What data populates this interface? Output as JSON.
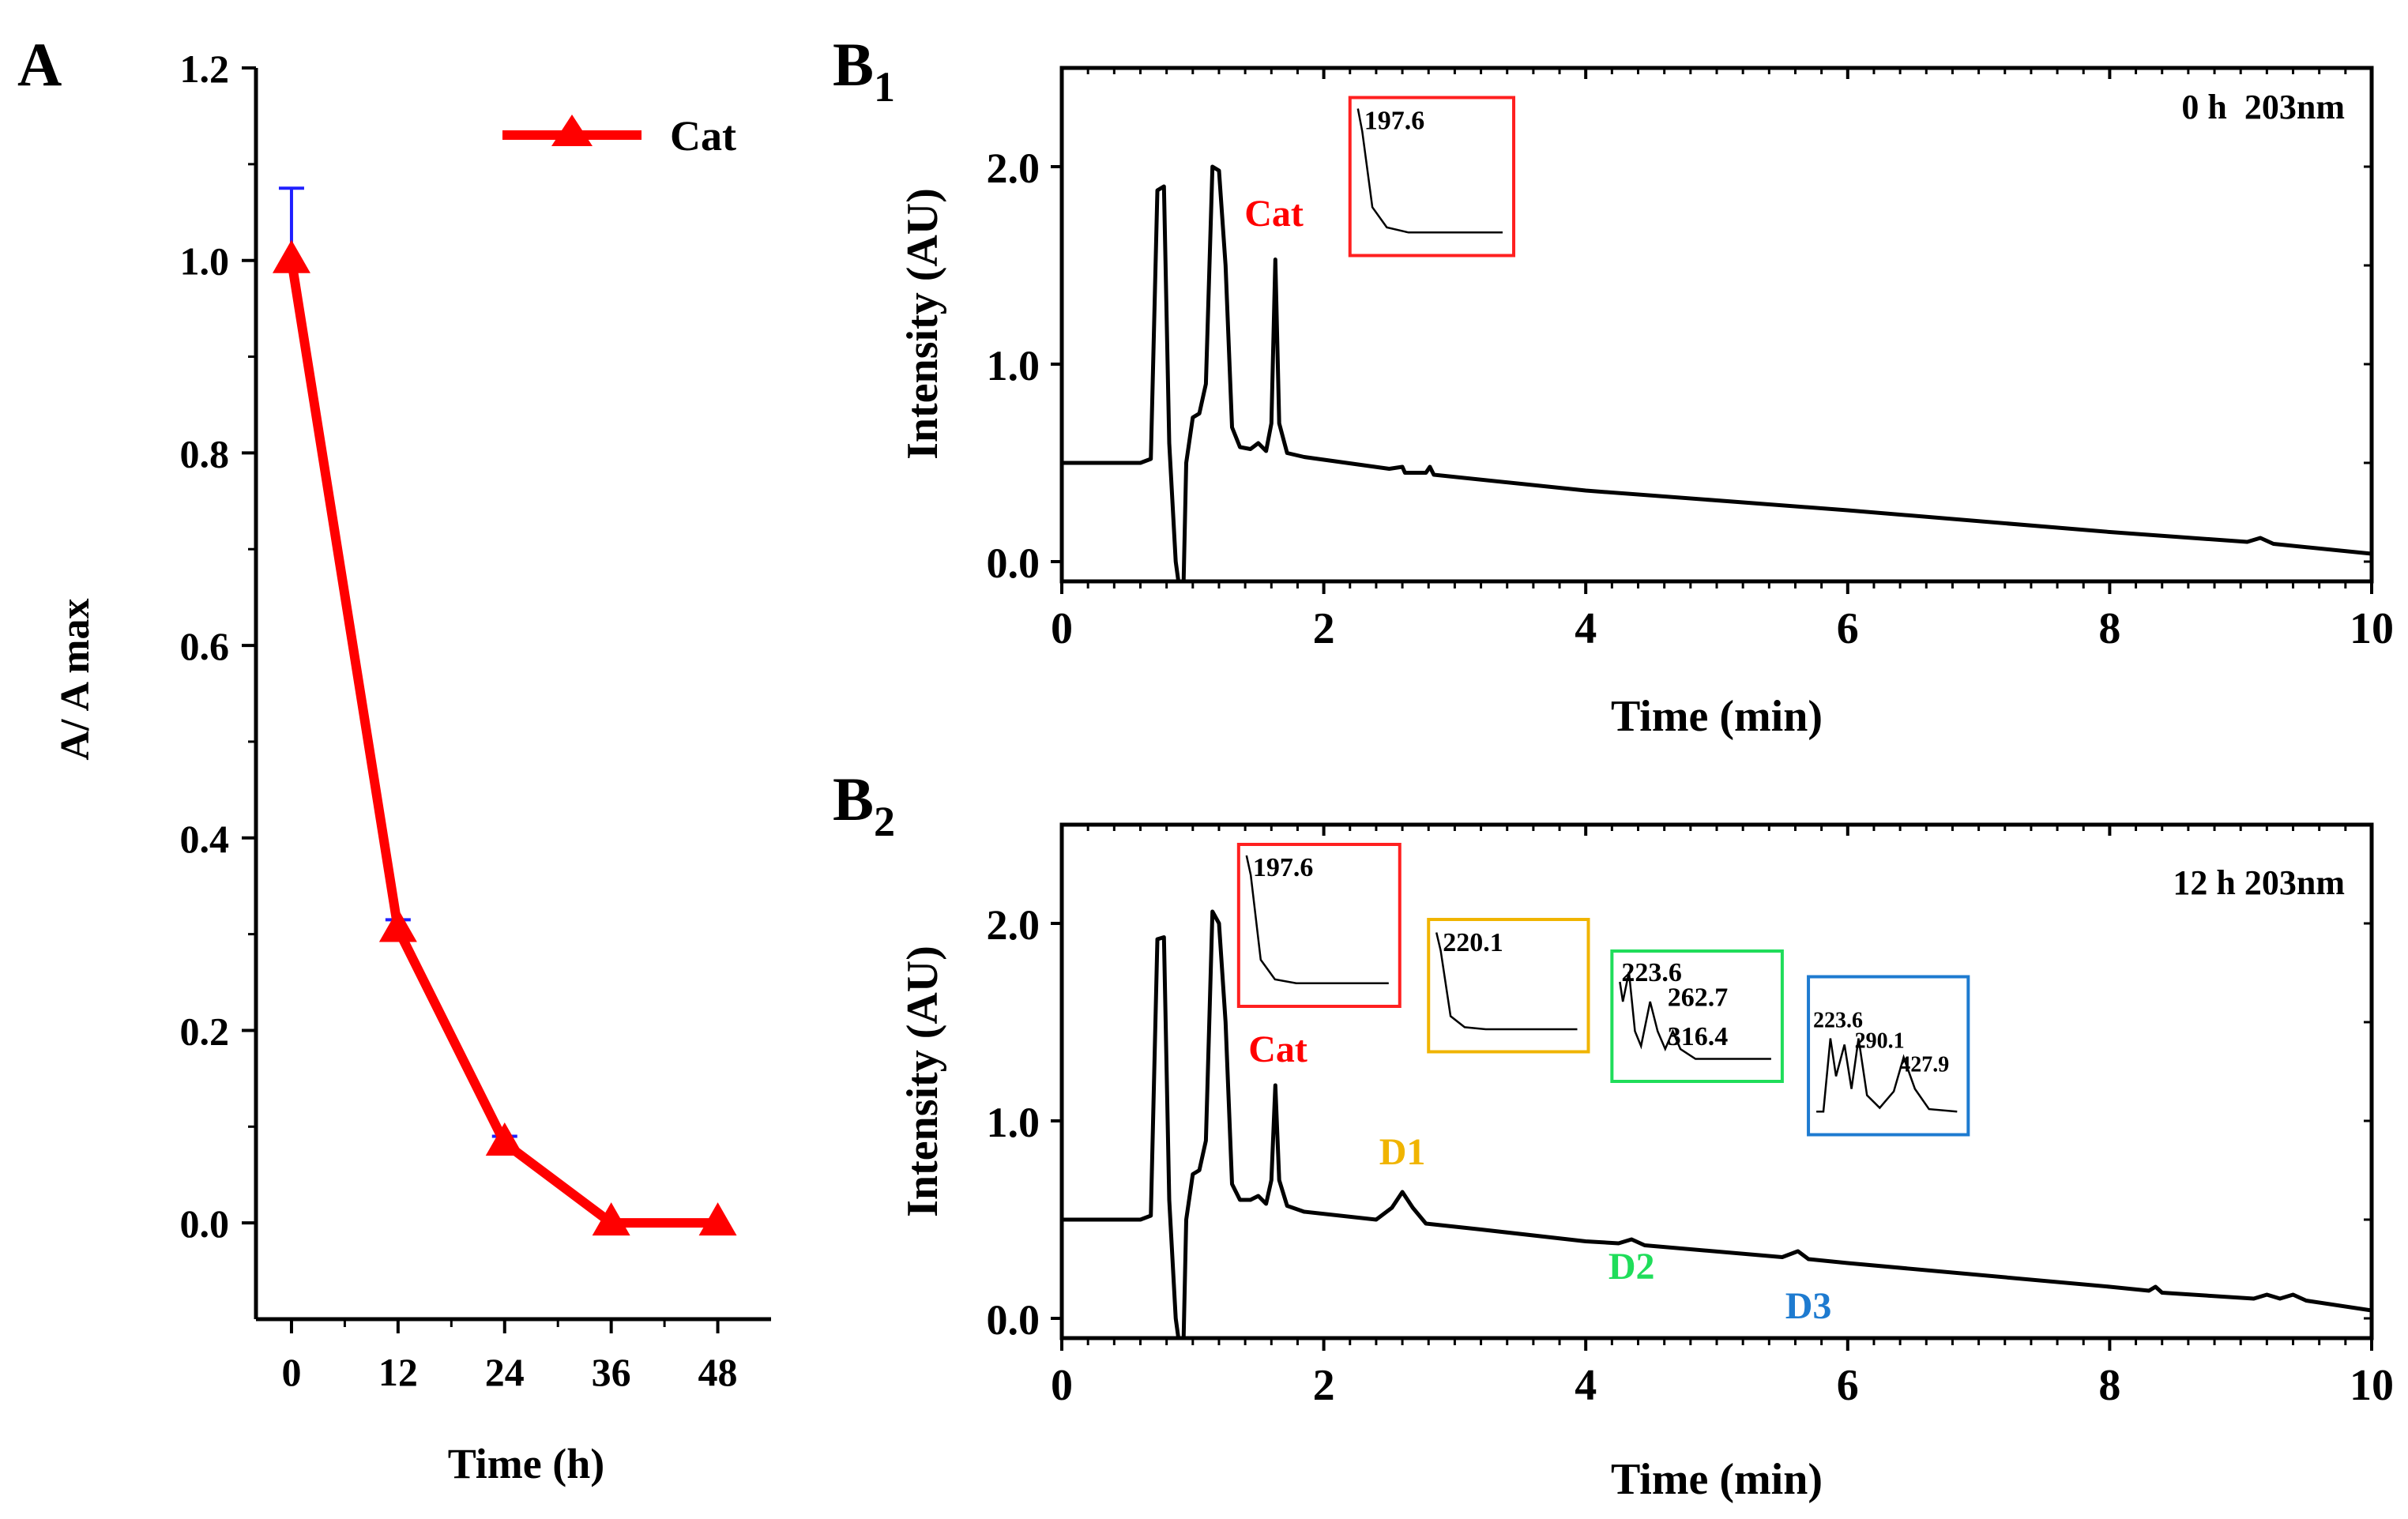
{
  "panels": {
    "a_label": "A",
    "b1_label_main": "B",
    "b1_label_sub": "1",
    "b2_label_main": "B",
    "b2_label_sub": "2"
  },
  "chart_data": [
    {
      "id": "A",
      "type": "line",
      "xlabel": "Time (h)",
      "ylabel": "A/ A max",
      "xlim": [
        -4,
        54
      ],
      "ylim": [
        -0.1,
        1.2
      ],
      "x": [
        0,
        12,
        24,
        36,
        48
      ],
      "x_tick_labels": [
        "0",
        "12",
        "24",
        "36",
        "48"
      ],
      "y_tick_labels": [
        "0.0",
        "0.2",
        "0.4",
        "0.6",
        "0.8",
        "1.0",
        "1.2"
      ],
      "series": [
        {
          "name": "Cat",
          "color": "#ff0000",
          "marker": "triangle",
          "values": [
            1.0,
            0.305,
            0.083,
            0.0,
            0.0
          ],
          "error_upper": [
            1.075,
            0.315,
            0.09,
            0.0,
            0.0
          ],
          "error_color": "#2020ff"
        }
      ],
      "legend": {
        "position": "top-right"
      },
      "grid": false
    },
    {
      "id": "B1",
      "type": "line",
      "xlabel": "Time (min)",
      "ylabel": "Intensity (AU)",
      "xlim": [
        0,
        10
      ],
      "ylim": [
        -0.1,
        2.5
      ],
      "x_tick_labels": [
        "0",
        "2",
        "4",
        "6",
        "8",
        "10"
      ],
      "y_tick_labels": [
        "0.0",
        "1.0",
        "2.0"
      ],
      "condition": "0 h  203nm",
      "series": [
        {
          "color": "#000000",
          "points": [
            [
              0,
              0.5
            ],
            [
              0.6,
              0.5
            ],
            [
              0.68,
              0.52
            ],
            [
              0.73,
              1.88
            ],
            [
              0.78,
              1.9
            ],
            [
              0.82,
              0.6
            ],
            [
              0.87,
              0.0
            ],
            [
              0.89,
              -0.1
            ],
            [
              0.93,
              -0.1
            ],
            [
              0.95,
              0.5
            ],
            [
              1.0,
              0.73
            ],
            [
              1.05,
              0.75
            ],
            [
              1.1,
              0.9
            ],
            [
              1.15,
              2.0
            ],
            [
              1.2,
              1.98
            ],
            [
              1.25,
              1.5
            ],
            [
              1.3,
              0.68
            ],
            [
              1.36,
              0.58
            ],
            [
              1.44,
              0.57
            ],
            [
              1.5,
              0.6
            ],
            [
              1.56,
              0.56
            ],
            [
              1.6,
              0.7
            ],
            [
              1.63,
              1.53
            ],
            [
              1.66,
              0.7
            ],
            [
              1.72,
              0.55
            ],
            [
              1.85,
              0.53
            ],
            [
              2.5,
              0.47
            ],
            [
              2.6,
              0.48
            ],
            [
              2.62,
              0.45
            ],
            [
              2.78,
              0.45
            ],
            [
              2.81,
              0.48
            ],
            [
              2.84,
              0.44
            ],
            [
              4.0,
              0.36
            ],
            [
              6.0,
              0.26
            ],
            [
              8.0,
              0.15
            ],
            [
              9.05,
              0.1
            ],
            [
              9.15,
              0.12
            ],
            [
              9.25,
              0.09
            ],
            [
              10.0,
              0.04
            ]
          ]
        }
      ],
      "annotations": [
        {
          "text": "Cat",
          "x": 1.62,
          "y": 1.7,
          "color": "#ff0000"
        }
      ],
      "insets": [
        {
          "box_color": "#ff2020",
          "peak_labels": [
            "197.6"
          ],
          "x_range": [
            2.2,
            3.45
          ],
          "y_range": [
            1.55,
            2.35
          ],
          "trace": [
            [
              0,
              1.0
            ],
            [
              0.03,
              0.82
            ],
            [
              0.1,
              0.22
            ],
            [
              0.2,
              0.06
            ],
            [
              0.35,
              0.02
            ],
            [
              1,
              0.02
            ]
          ]
        }
      ]
    },
    {
      "id": "B2",
      "type": "line",
      "xlabel": "Time (min)",
      "ylabel": "Intensity (AU)",
      "xlim": [
        0,
        10
      ],
      "ylim": [
        -0.1,
        2.5
      ],
      "x_tick_labels": [
        "0",
        "2",
        "4",
        "6",
        "8",
        "10"
      ],
      "y_tick_labels": [
        "0.0",
        "1.0",
        "2.0"
      ],
      "condition": "12 h 203nm",
      "series": [
        {
          "color": "#000000",
          "points": [
            [
              0,
              0.5
            ],
            [
              0.6,
              0.5
            ],
            [
              0.68,
              0.52
            ],
            [
              0.73,
              1.92
            ],
            [
              0.78,
              1.93
            ],
            [
              0.82,
              0.6
            ],
            [
              0.87,
              0.0
            ],
            [
              0.89,
              -0.1
            ],
            [
              0.93,
              -0.1
            ],
            [
              0.95,
              0.5
            ],
            [
              1.0,
              0.73
            ],
            [
              1.05,
              0.75
            ],
            [
              1.1,
              0.9
            ],
            [
              1.15,
              2.06
            ],
            [
              1.2,
              2.0
            ],
            [
              1.25,
              1.5
            ],
            [
              1.3,
              0.68
            ],
            [
              1.36,
              0.6
            ],
            [
              1.44,
              0.6
            ],
            [
              1.5,
              0.62
            ],
            [
              1.56,
              0.58
            ],
            [
              1.6,
              0.7
            ],
            [
              1.63,
              1.18
            ],
            [
              1.66,
              0.7
            ],
            [
              1.72,
              0.57
            ],
            [
              1.85,
              0.54
            ],
            [
              2.4,
              0.5
            ],
            [
              2.52,
              0.56
            ],
            [
              2.6,
              0.64
            ],
            [
              2.68,
              0.56
            ],
            [
              2.78,
              0.48
            ],
            [
              3.2,
              0.45
            ],
            [
              4.0,
              0.39
            ],
            [
              4.25,
              0.38
            ],
            [
              4.35,
              0.4
            ],
            [
              4.45,
              0.37
            ],
            [
              5.5,
              0.31
            ],
            [
              5.62,
              0.34
            ],
            [
              5.7,
              0.3
            ],
            [
              6.0,
              0.28
            ],
            [
              8.0,
              0.16
            ],
            [
              8.3,
              0.14
            ],
            [
              8.35,
              0.16
            ],
            [
              8.4,
              0.13
            ],
            [
              9.1,
              0.1
            ],
            [
              9.2,
              0.12
            ],
            [
              9.3,
              0.1
            ],
            [
              9.4,
              0.12
            ],
            [
              9.5,
              0.09
            ],
            [
              10.0,
              0.04
            ]
          ]
        }
      ],
      "annotations": [
        {
          "text": "Cat",
          "x": 1.65,
          "y": 1.3,
          "color": "#ff0000"
        },
        {
          "text": "D1",
          "x": 2.6,
          "y": 0.78,
          "color": "#f0b400"
        },
        {
          "text": "D2",
          "x": 4.35,
          "y": 0.2,
          "color": "#1fdd5a"
        },
        {
          "text": "D3",
          "x": 5.7,
          "y": 0.0,
          "color": "#1e7bd0"
        }
      ],
      "insets": [
        {
          "box_color": "#ff2020",
          "peak_labels": [
            "197.6"
          ],
          "x_range": [
            1.35,
            2.58
          ],
          "y_range": [
            1.58,
            2.4
          ],
          "trace": [
            [
              0,
              1.0
            ],
            [
              0.03,
              0.85
            ],
            [
              0.1,
              0.2
            ],
            [
              0.2,
              0.05
            ],
            [
              0.35,
              0.02
            ],
            [
              1,
              0.02
            ]
          ]
        },
        {
          "box_color": "#f0b400",
          "peak_labels": [
            "220.1"
          ],
          "x_range": [
            2.8,
            4.02
          ],
          "y_range": [
            1.35,
            2.02
          ],
          "trace": [
            [
              0,
              0.98
            ],
            [
              0.03,
              0.8
            ],
            [
              0.1,
              0.15
            ],
            [
              0.2,
              0.04
            ],
            [
              0.35,
              0.02
            ],
            [
              1,
              0.02
            ]
          ]
        },
        {
          "box_color": "#1fdd5a",
          "peak_labels": [
            "223.6",
            "262.7",
            "316.4"
          ],
          "x_range": [
            4.2,
            5.5
          ],
          "y_range": [
            1.2,
            1.86
          ],
          "trace": [
            [
              0,
              0.8
            ],
            [
              0.02,
              0.6
            ],
            [
              0.06,
              0.9
            ],
            [
              0.1,
              0.3
            ],
            [
              0.14,
              0.15
            ],
            [
              0.2,
              0.6
            ],
            [
              0.25,
              0.3
            ],
            [
              0.3,
              0.12
            ],
            [
              0.35,
              0.3
            ],
            [
              0.4,
              0.12
            ],
            [
              0.5,
              0.02
            ],
            [
              1,
              0.02
            ]
          ]
        },
        {
          "box_color": "#1e7bd0",
          "peak_labels": [
            "223.6",
            "290.1",
            "427.9"
          ],
          "x_range": [
            5.7,
            6.92
          ],
          "y_range": [
            0.93,
            1.73
          ],
          "trace": [
            [
              0,
              0.02
            ],
            [
              0.05,
              0.02
            ],
            [
              0.1,
              0.6
            ],
            [
              0.14,
              0.3
            ],
            [
              0.2,
              0.55
            ],
            [
              0.25,
              0.2
            ],
            [
              0.3,
              0.6
            ],
            [
              0.36,
              0.15
            ],
            [
              0.45,
              0.05
            ],
            [
              0.55,
              0.18
            ],
            [
              0.62,
              0.45
            ],
            [
              0.7,
              0.2
            ],
            [
              0.8,
              0.04
            ],
            [
              1,
              0.02
            ]
          ]
        }
      ]
    }
  ]
}
